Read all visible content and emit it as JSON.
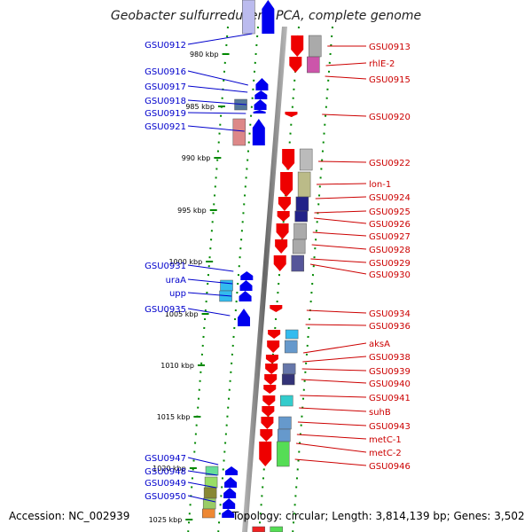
{
  "title": "Geobacter sulfurreducens PCA, complete genome",
  "footer": {
    "accession": "Accession: NC_002939",
    "topology": "Topology: circular; Length: 3,814,139 bp; Genes: 3,502"
  },
  "ticks": [
    "980 kbp",
    "985 kbp",
    "990 kbp",
    "995 kbp",
    "1000 kbp",
    "1005 kbp",
    "1010 kbp",
    "1015 kbp",
    "1020 kbp",
    "1025 kbp"
  ],
  "left_genes": [
    "GSU0912",
    "GSU0916",
    "GSU0917",
    "GSU0918",
    "GSU0919",
    "GSU0921",
    "GSU0931",
    "uraA",
    "upp",
    "GSU0935",
    "GSU0947",
    "GSU0948",
    "GSU0949",
    "GSU0950"
  ],
  "right_genes": [
    "GSU0913",
    "rhlE-2",
    "GSU0915",
    "GSU0920",
    "GSU0922",
    "lon-1",
    "GSU0924",
    "GSU0925",
    "GSU0926",
    "GSU0927",
    "GSU0928",
    "GSU0929",
    "GSU0930",
    "GSU0934",
    "GSU0936",
    "aksA",
    "GSU0938",
    "GSU0939",
    "GSU0940",
    "GSU0941",
    "suhB",
    "GSU0943",
    "metC-1",
    "metC-2",
    "GSU0946"
  ],
  "colors": {
    "forward": "#0000ee",
    "reverse": "#ee0000",
    "label_left": "#0000cc",
    "label_right": "#cc0000",
    "tick": "#008800",
    "backbone": "#888888"
  }
}
